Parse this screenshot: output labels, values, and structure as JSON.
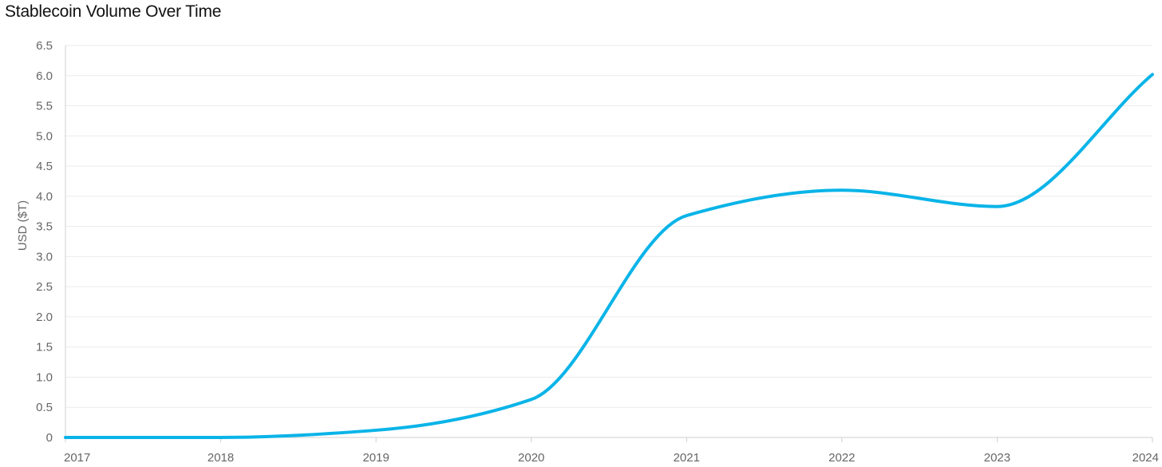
{
  "chart_data": {
    "type": "line",
    "title": "Stablecoin Volume Over Time",
    "xlabel": "",
    "ylabel": "USD ($T)",
    "x_ticks": [
      "2017",
      "2018",
      "2019",
      "2020",
      "2021",
      "2022",
      "2023",
      "2024"
    ],
    "y_ticks": [
      "0",
      "0.5",
      "1.0",
      "1.5",
      "2.0",
      "2.5",
      "3.0",
      "3.5",
      "4.0",
      "4.5",
      "5.0",
      "5.5",
      "6.0",
      "6.5"
    ],
    "xlim": [
      2017,
      2024
    ],
    "ylim": [
      0,
      6.5
    ],
    "grid": true,
    "color": "#0ab4e8",
    "series": [
      {
        "x": [
          2017,
          2018,
          2019,
          2020,
          2021,
          2022,
          2023,
          2024
        ],
        "values": [
          0.0,
          0.0,
          0.12,
          0.63,
          3.68,
          4.1,
          3.83,
          6.02
        ]
      }
    ]
  }
}
